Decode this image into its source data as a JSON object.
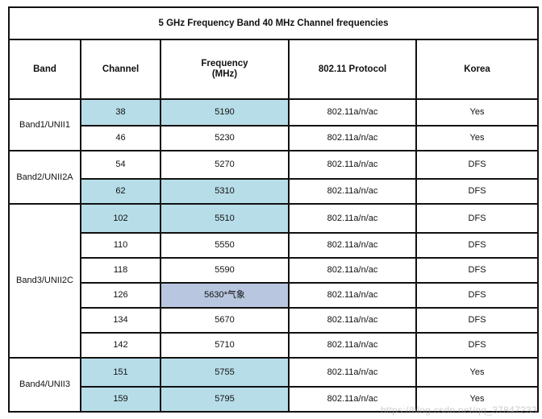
{
  "table": {
    "title": "5 GHz Frequency Band 40 MHz Channel frequencies",
    "headers": {
      "band": "Band",
      "channel": "Channel",
      "frequency_line1": "Frequency",
      "frequency_line2": "(MHz)",
      "protocol": "802.11 Protocol",
      "korea": "Korea"
    },
    "bands": [
      {
        "name": "Band1/UNII1",
        "rows": [
          {
            "channel": "38",
            "frequency": "5190",
            "protocol": "802.11a/n/ac",
            "korea": "Yes"
          },
          {
            "channel": "46",
            "frequency": "5230",
            "protocol": "802.11a/n/ac",
            "korea": "Yes"
          }
        ]
      },
      {
        "name": "Band2/UNII2A",
        "rows": [
          {
            "channel": "54",
            "frequency": "5270",
            "protocol": "802.11a/n/ac",
            "korea": "DFS"
          },
          {
            "channel": "62",
            "frequency": "5310",
            "protocol": "802.11a/n/ac",
            "korea": "DFS"
          }
        ]
      },
      {
        "name": "Band3/UNII2C",
        "rows": [
          {
            "channel": "102",
            "frequency": "5510",
            "protocol": "802.11a/n/ac",
            "korea": "DFS"
          },
          {
            "channel": "110",
            "frequency": "5550",
            "protocol": "802.11a/n/ac",
            "korea": "DFS"
          },
          {
            "channel": "118",
            "frequency": "5590",
            "protocol": "802.11a/n/ac",
            "korea": "DFS"
          },
          {
            "channel": "126",
            "frequency": "5630*气象",
            "protocol": "802.11a/n/ac",
            "korea": "DFS"
          },
          {
            "channel": "134",
            "frequency": "5670",
            "protocol": "802.11a/n/ac",
            "korea": "DFS"
          },
          {
            "channel": "142",
            "frequency": "5710",
            "protocol": "802.11a/n/ac",
            "korea": "DFS"
          }
        ]
      },
      {
        "name": "Band4/UNII3",
        "rows": [
          {
            "channel": "151",
            "frequency": "5755",
            "protocol": "802.11a/n/ac",
            "korea": "Yes"
          },
          {
            "channel": "159",
            "frequency": "5795",
            "protocol": "802.11a/n/ac",
            "korea": "Yes"
          }
        ]
      }
    ]
  },
  "watermark": "https://blog.csdn.net/qq_37847233",
  "colors": {
    "highlight_blue": "#b7dde8",
    "highlight_lavender": "#b8c7df"
  }
}
